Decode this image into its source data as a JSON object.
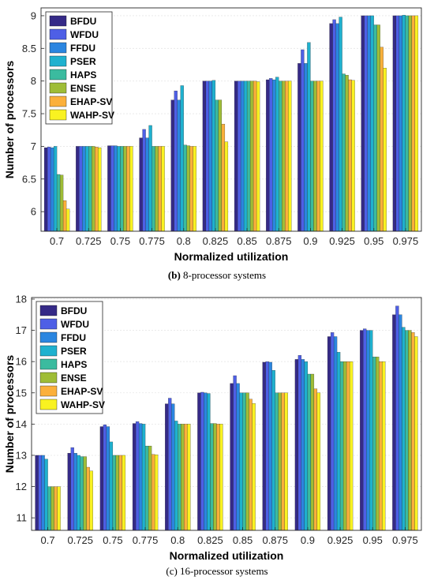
{
  "captions": [
    {
      "tag": "(b)",
      "text": "8-processor systems"
    },
    {
      "tag": "(c)",
      "text": "16-processor systems"
    }
  ],
  "series_colors": [
    "#352a87",
    "#4e5fe6",
    "#2b86e0",
    "#1fb1cf",
    "#3bbb9f",
    "#9fbd37",
    "#fbb03b",
    "#f9f221"
  ],
  "chart_data": [
    {
      "type": "bar",
      "xlabel": "Normalized utilization",
      "ylabel": "Number of processors",
      "ylim": [
        5.7,
        9.12
      ],
      "yticks": [
        6,
        6.5,
        7,
        7.5,
        8,
        8.5,
        9
      ],
      "grid": true,
      "legend": "top-left",
      "categories": [
        "0.7",
        "0.725",
        "0.75",
        "0.775",
        "0.8",
        "0.825",
        "0.85",
        "0.875",
        "0.9",
        "0.925",
        "0.95",
        "0.975"
      ],
      "series": [
        {
          "name": "BFDU",
          "values": [
            6.98,
            7.0,
            7.01,
            7.13,
            7.71,
            8.0,
            8.0,
            8.02,
            8.27,
            8.88,
            9.0,
            9.0
          ]
        },
        {
          "name": "WFDU",
          "values": [
            6.99,
            7.0,
            7.01,
            7.26,
            7.85,
            8.0,
            8.0,
            8.04,
            8.48,
            8.94,
            9.0,
            9.0
          ]
        },
        {
          "name": "FFDU",
          "values": [
            6.98,
            7.0,
            7.01,
            7.13,
            7.71,
            8.0,
            8.0,
            8.02,
            8.27,
            8.88,
            9.0,
            9.0
          ]
        },
        {
          "name": "PSER",
          "values": [
            7.0,
            7.0,
            7.0,
            7.32,
            7.93,
            8.01,
            8.0,
            8.06,
            8.59,
            8.98,
            9.0,
            9.01
          ]
        },
        {
          "name": "HAPS",
          "values": [
            6.57,
            7.0,
            7.0,
            7.0,
            7.02,
            7.71,
            8.0,
            8.0,
            8.0,
            8.11,
            8.86,
            9.0
          ]
        },
        {
          "name": "ENSE",
          "values": [
            6.56,
            7.0,
            7.0,
            7.0,
            7.01,
            7.71,
            8.0,
            8.0,
            8.0,
            8.09,
            8.86,
            9.0
          ]
        },
        {
          "name": "EHAP-SV",
          "values": [
            6.17,
            6.99,
            7.0,
            7.0,
            7.0,
            7.34,
            8.0,
            8.0,
            8.0,
            8.02,
            8.52,
            9.0
          ]
        },
        {
          "name": "WAHP-SV",
          "values": [
            6.04,
            6.98,
            7.0,
            7.0,
            7.0,
            7.07,
            7.99,
            8.0,
            8.0,
            8.01,
            8.2,
            9.0
          ]
        }
      ]
    },
    {
      "type": "bar",
      "xlabel": "Normalized utilization",
      "ylabel": "Number of processors",
      "ylim": [
        10.6,
        18.05
      ],
      "yticks": [
        11,
        12,
        13,
        14,
        15,
        16,
        17,
        18
      ],
      "grid": true,
      "legend": "top-left",
      "categories": [
        "0.7",
        "0.725",
        "0.75",
        "0.775",
        "0.8",
        "0.825",
        "0.85",
        "0.875",
        "0.9",
        "0.925",
        "0.95",
        "0.975"
      ],
      "series": [
        {
          "name": "BFDU",
          "values": [
            13.0,
            13.07,
            13.92,
            14.02,
            14.65,
            15.0,
            15.3,
            15.98,
            16.07,
            16.8,
            17.0,
            17.5
          ]
        },
        {
          "name": "WFDU",
          "values": [
            13.0,
            13.25,
            13.98,
            14.08,
            14.83,
            15.02,
            15.55,
            16.0,
            16.2,
            16.93,
            17.05,
            17.78
          ]
        },
        {
          "name": "FFDU",
          "values": [
            13.0,
            13.07,
            13.92,
            14.02,
            14.65,
            15.0,
            15.3,
            15.98,
            16.07,
            16.8,
            17.0,
            17.5
          ]
        },
        {
          "name": "PSER",
          "values": [
            12.88,
            13.0,
            13.43,
            14.0,
            14.1,
            14.98,
            15.0,
            15.72,
            16.0,
            16.3,
            17.0,
            17.1
          ]
        },
        {
          "name": "HAPS",
          "values": [
            12.0,
            12.96,
            13.0,
            13.3,
            14.0,
            14.02,
            15.0,
            15.0,
            15.6,
            16.0,
            16.15,
            17.0
          ]
        },
        {
          "name": "ENSE",
          "values": [
            12.0,
            12.96,
            13.0,
            13.3,
            14.0,
            14.02,
            15.0,
            15.0,
            15.6,
            16.0,
            16.15,
            17.0
          ]
        },
        {
          "name": "EHAP-SV",
          "values": [
            12.0,
            12.62,
            13.0,
            13.03,
            14.0,
            14.0,
            14.8,
            15.0,
            15.13,
            16.0,
            16.0,
            16.93
          ]
        },
        {
          "name": "WAHP-SV",
          "values": [
            12.0,
            12.5,
            13.0,
            13.02,
            14.0,
            14.0,
            14.66,
            15.0,
            15.0,
            16.0,
            16.0,
            16.8
          ]
        }
      ]
    }
  ]
}
